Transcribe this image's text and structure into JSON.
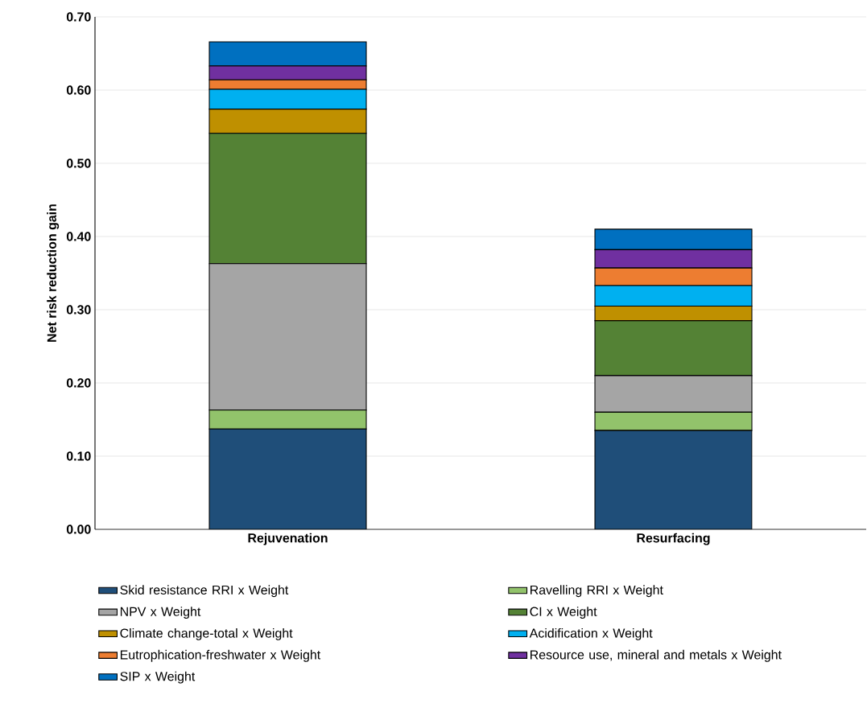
{
  "chart_data": {
    "type": "bar",
    "stacked": true,
    "ylabel": "Net risk reduction gain",
    "categories": [
      "Rejuvenation",
      "Resurfacing"
    ],
    "series": [
      {
        "name": "Skid resistance RRI x Weight",
        "color": "#1f4e79",
        "values": [
          0.137,
          0.135
        ]
      },
      {
        "name": "Ravelling RRI x Weight",
        "color": "#92c36b",
        "values": [
          0.026,
          0.025
        ]
      },
      {
        "name": "NPV x Weight",
        "color": "#a5a5a5",
        "values": [
          0.2,
          0.05
        ]
      },
      {
        "name": "CI x Weight",
        "color": "#548235",
        "values": [
          0.178,
          0.075
        ]
      },
      {
        "name": "Climate change-total x Weight",
        "color": "#bf9000",
        "values": [
          0.033,
          0.02
        ]
      },
      {
        "name": "Acidification x Weight",
        "color": "#00b0f0",
        "values": [
          0.027,
          0.028
        ]
      },
      {
        "name": "Eutrophication-freshwater x Weight",
        "color": "#ed7d31",
        "values": [
          0.013,
          0.024
        ]
      },
      {
        "name": "Resource use, mineral and metals x Weight",
        "color": "#7030a0",
        "values": [
          0.019,
          0.025
        ]
      },
      {
        "name": "SIP x Weight",
        "color": "#0070c0",
        "values": [
          0.033,
          0.028
        ]
      }
    ],
    "ylim": [
      0,
      0.7
    ],
    "yticks": [
      {
        "value": 0,
        "label": "0.00"
      },
      {
        "value": 0.1,
        "label": "0.10"
      },
      {
        "value": 0.2,
        "label": "0.20"
      },
      {
        "value": 0.3,
        "label": "0.30"
      },
      {
        "value": 0.4,
        "label": "0.40"
      },
      {
        "value": 0.5,
        "label": "0.50"
      },
      {
        "value": 0.6,
        "label": "0.60"
      },
      {
        "value": 0.7,
        "label": "0.70"
      }
    ],
    "grid": "y",
    "legend": "bottom"
  }
}
